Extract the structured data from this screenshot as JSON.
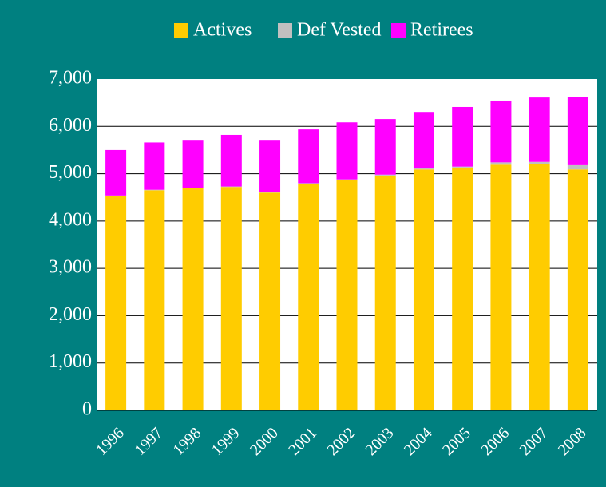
{
  "chart_data": {
    "type": "stacked_bar",
    "categories": [
      "1996",
      "1997",
      "1998",
      "1999",
      "2000",
      "2001",
      "2002",
      "2003",
      "2004",
      "2005",
      "2006",
      "2007",
      "2008"
    ],
    "series": [
      {
        "name": "Actives",
        "color": "#ffcc00",
        "values": [
          4530,
          4650,
          4690,
          4720,
          4600,
          4790,
          4860,
          4960,
          5090,
          5130,
          5190,
          5210,
          5090
        ]
      },
      {
        "name": "Def Vested",
        "color": "#c0c0c0",
        "values": [
          10,
          10,
          10,
          10,
          10,
          10,
          20,
          20,
          20,
          20,
          50,
          40,
          90
        ]
      },
      {
        "name": "Retirees",
        "color": "#ff00ff",
        "values": [
          960,
          1000,
          1015,
          1090,
          1105,
          1135,
          1205,
          1175,
          1195,
          1260,
          1305,
          1360,
          1445
        ]
      }
    ],
    "ylim": [
      0,
      7000
    ],
    "yticks": [
      0,
      {
        "value": 1000,
        "label": "1,000"
      },
      {
        "value": 2000,
        "label": "2,000"
      },
      {
        "value": 3000,
        "label": "3,000"
      },
      {
        "value": 4000,
        "label": "4,000"
      },
      {
        "value": 5000,
        "label": "5,000"
      },
      {
        "value": 6000,
        "label": "6,000"
      },
      {
        "value": 7000,
        "label": "7,000"
      }
    ],
    "grid": true
  }
}
